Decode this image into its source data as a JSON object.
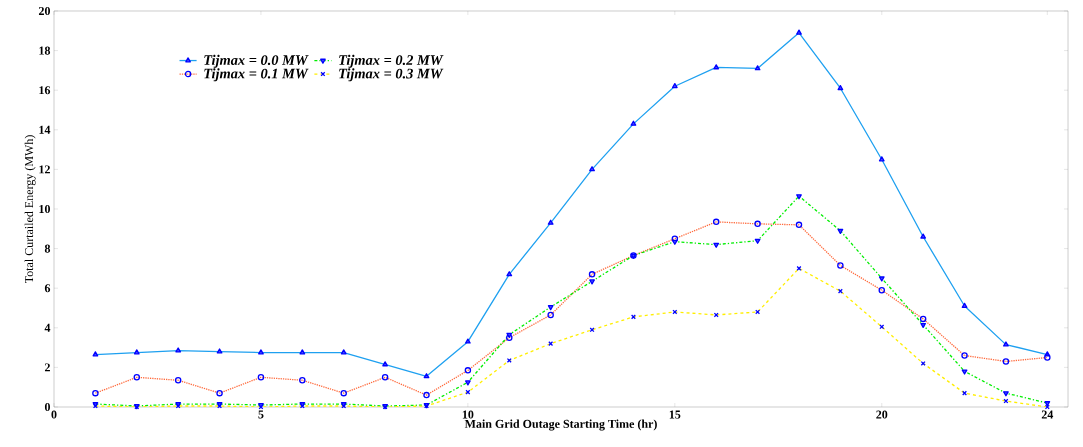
{
  "chart_data": {
    "type": "line",
    "xlabel": "Main Grid Outage Starting Time (hr)",
    "ylabel": "Total Curtailed Energy (MWh)",
    "x": [
      1,
      2,
      3,
      4,
      5,
      6,
      7,
      8,
      9,
      10,
      11,
      12,
      13,
      14,
      15,
      16,
      17,
      18,
      19,
      20,
      21,
      22,
      23,
      24
    ],
    "series": [
      {
        "name": "Tijmax = 0.0 MW",
        "color": "#1ea0f0",
        "marker": "triangle",
        "line_style": "solid",
        "values": [
          2.65,
          2.75,
          2.85,
          2.8,
          2.75,
          2.75,
          2.75,
          2.15,
          1.55,
          3.3,
          6.7,
          9.3,
          12.0,
          14.3,
          16.2,
          17.15,
          17.1,
          18.9,
          16.1,
          12.5,
          8.6,
          5.1,
          3.15,
          2.65
        ]
      },
      {
        "name": "Tijmax = 0.1 MW",
        "color": "#ff6a3c",
        "marker": "circle",
        "line_style": "dotted",
        "values": [
          0.7,
          1.5,
          1.35,
          0.7,
          1.5,
          1.35,
          0.7,
          1.5,
          0.6,
          1.85,
          3.5,
          4.65,
          6.7,
          7.65,
          8.5,
          9.35,
          9.25,
          9.2,
          7.15,
          5.9,
          4.45,
          2.6,
          2.3,
          2.5
        ]
      },
      {
        "name": "Tijmax = 0.2 MW",
        "color": "#00ee00",
        "marker": "triangle down",
        "line_style": "dashdot",
        "values": [
          0.15,
          0.05,
          0.15,
          0.15,
          0.1,
          0.15,
          0.15,
          0.05,
          0.1,
          1.25,
          3.65,
          5.05,
          6.35,
          7.65,
          8.35,
          8.2,
          8.4,
          10.65,
          8.9,
          6.5,
          4.15,
          1.8,
          0.7,
          0.2
        ]
      },
      {
        "name": "Tijmax = 0.3 MW",
        "color": "#ffee00",
        "marker": "cross",
        "line_style": "dashed",
        "values": [
          0.05,
          0.0,
          0.05,
          0.05,
          0.0,
          0.05,
          0.05,
          0.0,
          0.05,
          0.75,
          2.35,
          3.2,
          3.9,
          4.55,
          4.8,
          4.65,
          4.8,
          7.0,
          5.85,
          4.05,
          2.2,
          0.7,
          0.3,
          0.0
        ]
      }
    ],
    "xlim": [
      0,
      24.5
    ],
    "ylim": [
      0,
      20
    ],
    "xticks": [
      0,
      5,
      10,
      15,
      20,
      24
    ],
    "yticks": [
      0,
      2,
      4,
      6,
      8,
      10,
      12,
      14,
      16,
      18,
      20
    ],
    "grid": false,
    "legend": "top left"
  }
}
